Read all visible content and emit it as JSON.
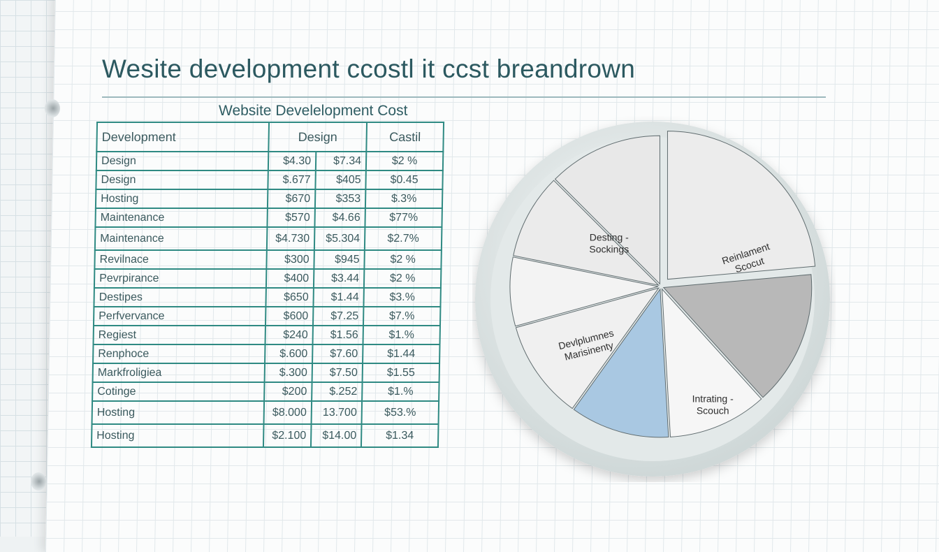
{
  "page": {
    "title": "Wesite development ccostl it ccst breandrown",
    "table_caption": "Website Develelopment Cost"
  },
  "chart_data": [
    {
      "type": "table",
      "title": "Website Develelopment Cost",
      "columns": [
        "Development",
        "Design",
        "",
        "Castil"
      ],
      "rows": [
        [
          "Design",
          "$4.30",
          "$7.34",
          "$2 %"
        ],
        [
          "Design",
          "$.677",
          "$405",
          "$0.45"
        ],
        [
          "Hosting",
          "$670",
          "$353",
          "$.3%"
        ],
        [
          "Maintenance",
          "$570",
          "$4.66",
          "$77%"
        ],
        [
          "Maintenance",
          "$4.730",
          "$5.304",
          "$2.7%"
        ],
        [
          "Revilnace",
          "$300",
          "$945",
          "$2 %"
        ],
        [
          "Pevrpirance",
          "$400",
          "$3.44",
          "$2 %"
        ],
        [
          "Destipes",
          "$650",
          "$1.44",
          "$3.%"
        ],
        [
          "Perfvervance",
          "$600",
          "$7.25",
          "$7.%"
        ],
        [
          "Regiest",
          "$240",
          "$1.56",
          "$1.%"
        ],
        [
          "Renphoce",
          "$.600",
          "$7.60",
          "$1.44"
        ],
        [
          "Markfroligiea",
          "$.300",
          "$7.50",
          "$1.55"
        ],
        [
          "Cotinge",
          "$200",
          "$.252",
          "$1.%"
        ],
        [
          "Hosting",
          "$8.000",
          "13.700",
          "$53.%"
        ],
        [
          "Hosting",
          "$2.100",
          "$14.00",
          "$1.34"
        ]
      ]
    },
    {
      "type": "pie",
      "title": "",
      "slices": [
        {
          "label": "Reinlament Scocut",
          "value": 23.6,
          "color": "#ececec"
        },
        {
          "label": "",
          "value": 14.7,
          "color": "#b8b8b8"
        },
        {
          "label": "Intrating - Scouch",
          "value": 10.8,
          "color": "#f6f6f6"
        },
        {
          "label": "",
          "value": 10.8,
          "color": "#a9c8e2"
        },
        {
          "label": "Devlplumnes Marisinenty",
          "value": 10.8,
          "color": "#f0f0f0"
        },
        {
          "label": "",
          "value": 7.5,
          "color": "#f3f3f3"
        },
        {
          "label": "Desting - Sockings",
          "value": 9.3,
          "color": "#ebebeb"
        },
        {
          "label": "",
          "value": 12.5,
          "color": "#e8e8e8"
        }
      ],
      "start_angle_deg": 0,
      "direction": "clockwise"
    }
  ],
  "colors": {
    "title": "#2c5960",
    "table_border": "#2f8a83",
    "table_text": "#3b5a5e",
    "highlight_slice": "#a9c8e2"
  }
}
